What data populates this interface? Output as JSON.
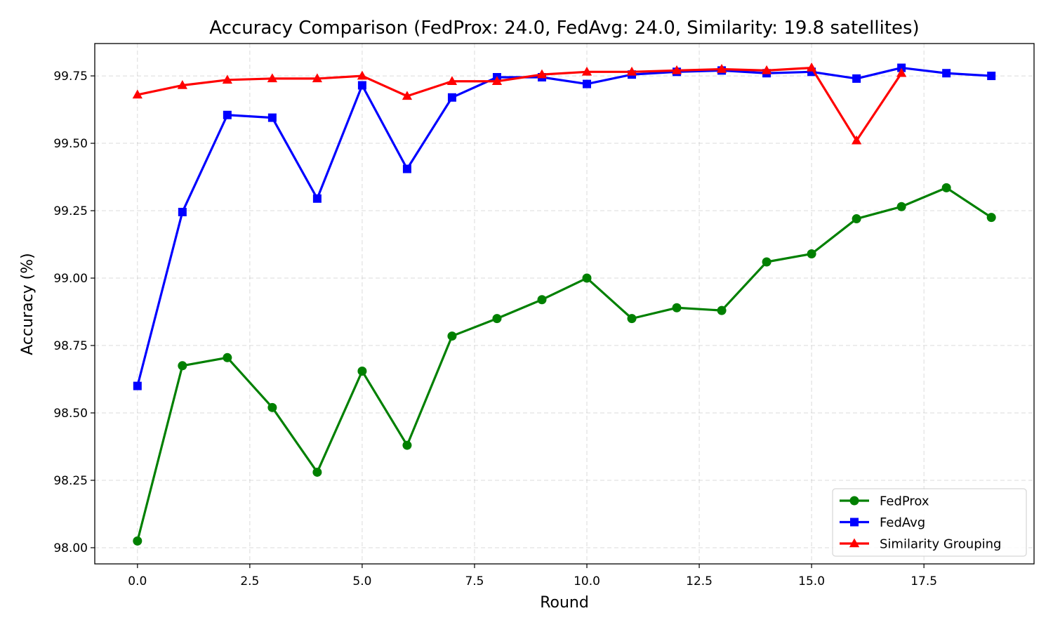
{
  "chart_data": {
    "type": "line",
    "title": "Accuracy Comparison (FedProx: 24.0, FedAvg: 24.0, Similarity: 19.8 satellites)",
    "xlabel": "Round",
    "ylabel": "Accuracy (%)",
    "xlim": [
      -0.95,
      19.95
    ],
    "ylim": [
      97.94,
      99.87
    ],
    "xticks": [
      0.0,
      2.5,
      5.0,
      7.5,
      10.0,
      12.5,
      15.0,
      17.5
    ],
    "xtick_labels": [
      "0.0",
      "2.5",
      "5.0",
      "7.5",
      "10.0",
      "12.5",
      "15.0",
      "17.5"
    ],
    "yticks": [
      98.0,
      98.25,
      98.5,
      98.75,
      99.0,
      99.25,
      99.5,
      99.75
    ],
    "ytick_labels": [
      "98.00",
      "98.25",
      "98.50",
      "98.75",
      "99.00",
      "99.25",
      "99.50",
      "99.75"
    ],
    "grid": true,
    "legend_position": "bottom-right",
    "series": [
      {
        "name": "FedProx",
        "color": "#008000",
        "marker": "circle",
        "x": [
          0,
          1,
          2,
          3,
          4,
          5,
          6,
          7,
          8,
          9,
          10,
          11,
          12,
          13,
          14,
          15,
          16,
          17,
          18,
          19
        ],
        "values": [
          98.025,
          98.675,
          98.705,
          98.52,
          98.28,
          98.655,
          98.38,
          98.785,
          98.85,
          98.92,
          99.0,
          98.85,
          98.89,
          98.88,
          99.06,
          99.09,
          99.22,
          99.265,
          99.335,
          99.225
        ]
      },
      {
        "name": "FedAvg",
        "color": "#0000ff",
        "marker": "square",
        "x": [
          0,
          1,
          2,
          3,
          4,
          5,
          6,
          7,
          8,
          9,
          10,
          11,
          12,
          13,
          14,
          15,
          16,
          17,
          18,
          19
        ],
        "values": [
          98.6,
          99.245,
          99.605,
          99.595,
          99.295,
          99.715,
          99.405,
          99.67,
          99.745,
          99.745,
          99.72,
          99.755,
          99.765,
          99.77,
          99.76,
          99.765,
          99.74,
          99.78,
          99.76,
          99.75
        ]
      },
      {
        "name": "Similarity Grouping",
        "color": "#ff0000",
        "marker": "triangle",
        "x": [
          0,
          1,
          2,
          3,
          4,
          5,
          6,
          7,
          8,
          9,
          10,
          11,
          12,
          13,
          14,
          15,
          16,
          17
        ],
        "values": [
          99.68,
          99.715,
          99.735,
          99.74,
          99.74,
          99.75,
          99.675,
          99.73,
          99.73,
          99.755,
          99.765,
          99.765,
          99.77,
          99.775,
          99.77,
          99.78,
          99.51,
          99.76
        ]
      }
    ]
  }
}
